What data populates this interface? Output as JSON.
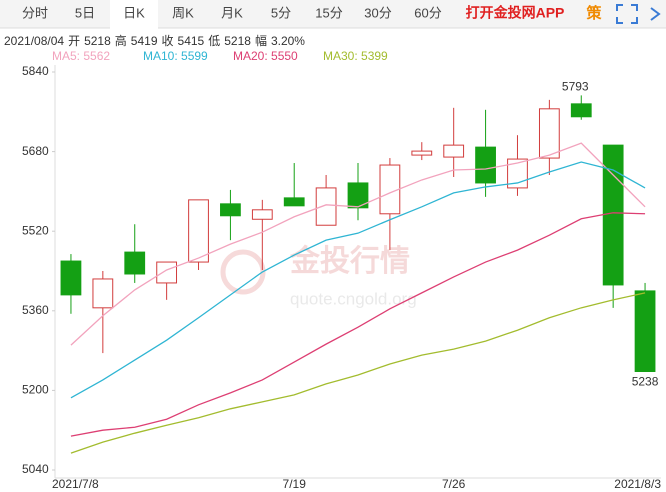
{
  "tabs": [
    "分时",
    "5日",
    "日K",
    "周K",
    "月K",
    "5分",
    "15分",
    "30分",
    "60分"
  ],
  "selected_tab_index": 2,
  "app_link": "打开金投网APP",
  "strategy_icon": "策",
  "info": {
    "date": "2021/08/04",
    "open_label": "开",
    "open": 5218,
    "high_label": "高",
    "high": 5419,
    "close_label": "收",
    "close": 5415,
    "low_label": "低",
    "low": 5218,
    "change_label": "幅",
    "change": "3.20%"
  },
  "watermark": {
    "title": "金投行情",
    "url": "quote.cngold.org"
  },
  "chart_data": {
    "type": "candlestick",
    "categories": [
      "2021/7/8",
      null,
      null,
      null,
      null,
      null,
      null,
      "7/19",
      null,
      null,
      null,
      null,
      "7/26",
      null,
      null,
      null,
      null,
      null,
      "2021/8/3"
    ],
    "open": [
      5460,
      5366,
      5478,
      5416,
      5458,
      5575,
      5544,
      5587,
      5532,
      5617,
      5555,
      5673,
      5669,
      5689,
      5607,
      5667,
      5776,
      5693,
      5400
    ],
    "high": [
      5474,
      5440,
      5534,
      5458,
      5583,
      5603,
      5583,
      5657,
      5633,
      5657,
      5667,
      5699,
      5768,
      5764,
      5713,
      5784,
      5793,
      5693,
      5416
    ],
    "low": [
      5354,
      5275,
      5416,
      5382,
      5442,
      5502,
      5442,
      5571,
      5532,
      5542,
      5482,
      5663,
      5629,
      5589,
      5591,
      5633,
      5744,
      5366,
      5238
    ],
    "close": [
      5392,
      5424,
      5434,
      5458,
      5583,
      5551,
      5563,
      5571,
      5607,
      5567,
      5653,
      5681,
      5693,
      5617,
      5665,
      5766,
      5750,
      5412,
      5238
    ],
    "up_color": "#d23c3c",
    "down_color": "#14a014",
    "series": [
      {
        "name": "MA5: 5562",
        "color": "#f2a3bd",
        "values": [
          5291,
          5350,
          5402,
          5442,
          5466,
          5494,
          5518,
          5549,
          5573,
          5569,
          5597,
          5623,
          5643,
          5645,
          5657,
          5673,
          5697,
          5633,
          5569
        ]
      },
      {
        "name": "MA10: 5599",
        "color": "#2fb5d3",
        "values": [
          5185,
          5221,
          5261,
          5301,
          5346,
          5392,
          5438,
          5472,
          5502,
          5516,
          5543,
          5569,
          5597,
          5609,
          5617,
          5639,
          5659,
          5643,
          5607
        ]
      },
      {
        "name": "MA20: 5550",
        "color": "#dd3f73",
        "values": [
          5108,
          5120,
          5126,
          5142,
          5171,
          5195,
          5221,
          5257,
          5293,
          5327,
          5364,
          5396,
          5428,
          5458,
          5482,
          5512,
          5545,
          5557,
          5555
        ]
      },
      {
        "name": "MA30: 5399",
        "color": "#a3bc2e",
        "values": [
          5074,
          5096,
          5114,
          5130,
          5145,
          5163,
          5177,
          5191,
          5213,
          5231,
          5253,
          5271,
          5283,
          5299,
          5321,
          5346,
          5366,
          5382,
          5396
        ]
      }
    ],
    "ylim": [
      5040,
      5840
    ],
    "yticks": [
      5040,
      5200,
      5360,
      5520,
      5680,
      5840
    ]
  }
}
